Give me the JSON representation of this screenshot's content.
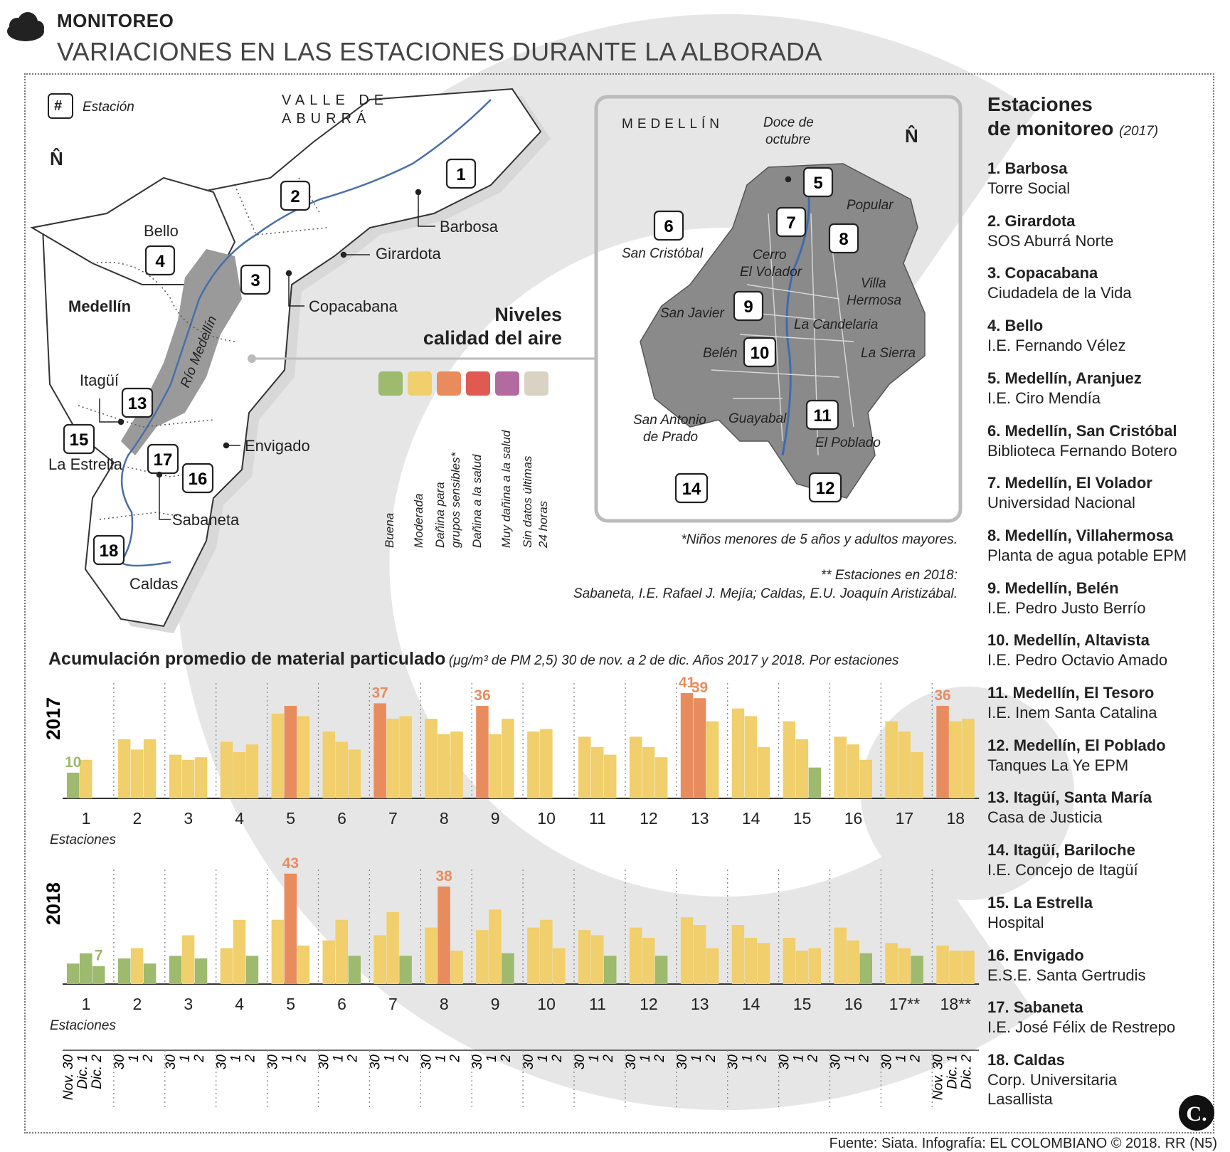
{
  "header": {
    "section": "MONITOREO",
    "title": "VARIACIONES EN LAS ESTACIONES DURANTE LA ALBORADA"
  },
  "map": {
    "key_symbol": "#",
    "key_label": "Estación",
    "north": "N̂",
    "region_title": [
      "VALLE DE",
      "ABURRÁ"
    ],
    "river_label": "Río Medellín",
    "places": [
      "Bello",
      "Medellín",
      "Itagüí",
      "La Estrella",
      "Envigado",
      "Sabaneta",
      "Caldas",
      "Barbosa",
      "Girardota",
      "Copacabana"
    ],
    "inset_title": "MEDELLÍN",
    "inset_places": [
      "Doce de",
      "octubre",
      "Popular",
      "San Cristóbal",
      "Cerro",
      "El Volador",
      "Villa",
      "Hermosa",
      "San Javier",
      "La Candelaria",
      "Belén",
      "La Sierra",
      "San Antonio",
      "de Prado",
      "Guayabal",
      "El Poblado"
    ]
  },
  "legend": {
    "title": [
      "Niveles",
      "calidad del aire"
    ],
    "levels": [
      {
        "label": "Buena",
        "color": "#9dba6e"
      },
      {
        "label": "Moderada",
        "color": "#f0cf6c"
      },
      {
        "label": "Dañina para grupos sensibles*",
        "color": "#e88c5e"
      },
      {
        "label": "Dañina a la salud",
        "color": "#e05a52"
      },
      {
        "label": "Muy dañina a la salud",
        "color": "#b36aa0"
      },
      {
        "label": "Sin datos últimas 24 horas",
        "color": "#d8d3c3"
      }
    ],
    "label_lines": [
      [
        "Buena"
      ],
      [
        "Moderada"
      ],
      [
        "Dañina para",
        "grupos sensibles*"
      ],
      [
        "Dañina a la salud"
      ],
      [
        "Muy dañina a la salud"
      ],
      [
        "Sin datos últimas",
        "24 horas"
      ]
    ],
    "footnote1": "*Niños menores de 5 años y adultos mayores.",
    "footnote2a": "** Estaciones en 2018:",
    "footnote2b": "Sabaneta, I.E. Rafael J. Mejía; Caldas, E.U. Joaquín Aristizábal."
  },
  "stations_panel": {
    "title1": "Estaciones",
    "title2": "de monitoreo",
    "year": "(2017)",
    "items": [
      {
        "name": "1. Barbosa",
        "place": "Torre Social"
      },
      {
        "name": "2. Girardota",
        "place": "SOS Aburrá Norte"
      },
      {
        "name": "3. Copacabana",
        "place": "Ciudadela de la Vida"
      },
      {
        "name": "4. Bello",
        "place": "I.E. Fernando Vélez"
      },
      {
        "name": "5. Medellín, Aranjuez",
        "place": "I.E. Ciro Mendía"
      },
      {
        "name": "6. Medellín, San Cristóbal",
        "place": "Biblioteca Fernando Botero"
      },
      {
        "name": "7. Medellín, El Volador",
        "place": "Universidad Nacional"
      },
      {
        "name": "8. Medellín, Villahermosa",
        "place": "Planta de agua potable EPM"
      },
      {
        "name": "9. Medellín, Belén",
        "place": "I.E. Pedro Justo Berrío"
      },
      {
        "name": "10. Medellín, Altavista",
        "place": "I.E. Pedro Octavio Amado"
      },
      {
        "name": "11. Medellín, El Tesoro",
        "place": "I.E. Inem Santa Catalina"
      },
      {
        "name": "12. Medellín, El Poblado",
        "place": "Tanques La Ye EPM"
      },
      {
        "name": "13. Itagüí, Santa María",
        "place": "Casa de Justicia"
      },
      {
        "name": "14. Itagüí, Bariloche",
        "place": "I.E. Concejo de Itagüí"
      },
      {
        "name": "15. La Estrella",
        "place": "Hospital"
      },
      {
        "name": "16. Envigado",
        "place": "E.S.E. Santa Gertrudis"
      },
      {
        "name": "17. Sabaneta",
        "place": "I.E. José Félix de Restrepo"
      },
      {
        "name": "18. Caldas",
        "place": "Corp. Universitaria",
        "place2": "Lasallista"
      }
    ]
  },
  "chart_data": {
    "type": "bar",
    "title": "Acumulación promedio de material particulado",
    "subtitle": "(μg/m³ de PM 2,5) 30 de nov. a 2 de dic. Años 2017 y 2018. Por estaciones",
    "unit": "μg/m³",
    "xlabel": "Estaciones",
    "days": [
      "30",
      "1",
      "2"
    ],
    "first_day_labels": [
      "Nov. 30",
      "Dic. 1",
      "Dic. 2"
    ],
    "ylim": [
      0,
      45
    ],
    "panels": [
      {
        "year": "2017",
        "stations": [
          "1",
          "2",
          "3",
          "4",
          "5",
          "6",
          "7",
          "8",
          "9",
          "10",
          "11",
          "12",
          "13",
          "14",
          "15",
          "16",
          "17",
          "18"
        ],
        "values": [
          [
            10,
            15,
            null
          ],
          [
            23,
            19,
            23
          ],
          [
            17,
            15,
            16
          ],
          [
            22,
            18,
            21
          ],
          [
            33,
            36,
            32
          ],
          [
            26,
            22,
            19
          ],
          [
            37,
            31,
            32
          ],
          [
            31,
            25,
            26
          ],
          [
            36,
            25,
            31
          ],
          [
            26,
            27,
            null
          ],
          [
            24,
            20,
            17
          ],
          [
            24,
            20,
            16
          ],
          [
            41,
            39,
            30
          ],
          [
            35,
            32,
            20
          ],
          [
            30,
            23,
            12
          ],
          [
            24,
            21,
            15
          ],
          [
            30,
            26,
            18
          ],
          [
            36,
            30,
            31
          ]
        ],
        "labels": [
          {
            "station": "1",
            "day": 0,
            "text": "10"
          },
          {
            "station": "7",
            "day": 0,
            "text": "37"
          },
          {
            "station": "9",
            "day": 0,
            "text": "36"
          },
          {
            "station": "13",
            "day": 0,
            "text": "41"
          },
          {
            "station": "13",
            "day": 1,
            "text": "39"
          },
          {
            "station": "18",
            "day": 0,
            "text": "36"
          }
        ]
      },
      {
        "year": "2018",
        "stations": [
          "1",
          "2",
          "3",
          "4",
          "5",
          "6",
          "7",
          "8",
          "9",
          "10",
          "11",
          "12",
          "13",
          "14",
          "15",
          "16",
          "17",
          "18**"
        ],
        "values": [
          [
            8,
            12,
            7
          ],
          [
            10,
            14,
            8
          ],
          [
            11,
            19,
            10
          ],
          [
            14,
            25,
            11
          ],
          [
            25,
            43,
            15
          ],
          [
            17,
            25,
            11
          ],
          [
            19,
            28,
            11
          ],
          [
            22,
            38,
            13
          ],
          [
            21,
            29,
            12
          ],
          [
            22,
            25,
            14
          ],
          [
            21,
            19,
            11
          ],
          [
            22,
            18,
            11
          ],
          [
            26,
            23,
            14
          ],
          [
            23,
            18,
            16
          ],
          [
            18,
            13,
            14
          ],
          [
            22,
            17,
            12
          ],
          [
            16,
            14,
            11
          ],
          [
            15,
            13,
            13
          ]
        ],
        "labels": [
          {
            "station": "1",
            "day": 2,
            "text": "7"
          },
          {
            "station": "5",
            "day": 1,
            "text": "43"
          },
          {
            "station": "8",
            "day": 1,
            "text": "38"
          }
        ]
      }
    ],
    "station_axis_2018_display": [
      "1",
      "2",
      "3",
      "4",
      "5",
      "6",
      "7",
      "8",
      "9",
      "10",
      "11",
      "12",
      "13",
      "14",
      "15",
      "16",
      "17**",
      "18**"
    ],
    "color_by_value": {
      "buena_max": 12,
      "moderada_max": 35,
      "buena": "#9dba6e",
      "moderada": "#f0cf6c",
      "sensibles": "#e88c5e"
    }
  },
  "source": "Fuente: Siata. Infografía: EL COLOMBIANO © 2018. RR (N5)",
  "logo": "C."
}
